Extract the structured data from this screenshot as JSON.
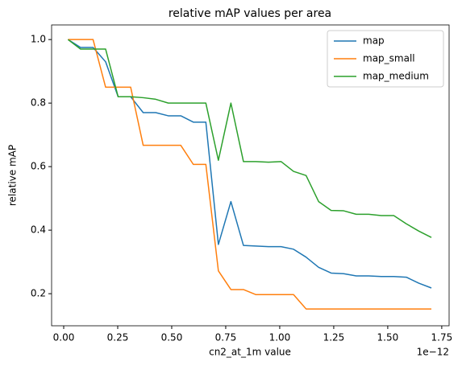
{
  "chart_data": {
    "type": "line",
    "title": "relative mAP values per area",
    "x_label": "cn2_at_1m value",
    "x_offset_label": "1e−12",
    "y_label": "relative mAP",
    "x": [
      0.02,
      0.078,
      0.136,
      0.194,
      0.252,
      0.31,
      0.368,
      0.426,
      0.484,
      0.542,
      0.6,
      0.658,
      0.716,
      0.774,
      0.832,
      0.89,
      0.948,
      1.006,
      1.064,
      1.122,
      1.18,
      1.238,
      1.296,
      1.354,
      1.412,
      1.47,
      1.528,
      1.586,
      1.644,
      1.702
    ],
    "series": [
      {
        "name": "map",
        "color": "#1f77b4",
        "values": [
          1.0,
          0.975,
          0.975,
          0.93,
          0.82,
          0.82,
          0.77,
          0.77,
          0.76,
          0.76,
          0.74,
          0.74,
          0.355,
          0.49,
          0.352,
          0.35,
          0.348,
          0.348,
          0.34,
          0.315,
          0.283,
          0.265,
          0.263,
          0.256,
          0.256,
          0.254,
          0.254,
          0.252,
          0.233,
          0.218
        ]
      },
      {
        "name": "map_small",
        "color": "#ff7f0e",
        "values": [
          1.0,
          1.0,
          1.0,
          0.85,
          0.85,
          0.85,
          0.667,
          0.667,
          0.667,
          0.667,
          0.607,
          0.607,
          0.272,
          0.213,
          0.213,
          0.197,
          0.197,
          0.197,
          0.197,
          0.152,
          0.152,
          0.152,
          0.152,
          0.152,
          0.152,
          0.152,
          0.152,
          0.152,
          0.152,
          0.152
        ]
      },
      {
        "name": "map_medium",
        "color": "#2ca02c",
        "values": [
          1.0,
          0.97,
          0.97,
          0.97,
          0.82,
          0.82,
          0.817,
          0.812,
          0.8,
          0.8,
          0.8,
          0.8,
          0.62,
          0.8,
          0.616,
          0.616,
          0.614,
          0.616,
          0.585,
          0.572,
          0.49,
          0.462,
          0.461,
          0.45,
          0.45,
          0.446,
          0.446,
          0.42,
          0.397,
          0.377
        ]
      }
    ],
    "xlim": [
      -0.056,
      1.784
    ],
    "ylim": [
      0.099,
      1.046
    ],
    "xticks": [
      {
        "value": 0,
        "label": "0.00"
      },
      0.25,
      {
        "value": 0.5,
        "label": "0.50"
      },
      0.75,
      {
        "value": 1,
        "label": "1.00"
      },
      1.25,
      {
        "value": 1.5,
        "label": "1.50"
      },
      1.75
    ],
    "yticks": [
      0.2,
      0.4,
      0.6,
      0.8,
      {
        "value": 1,
        "label": "1.0"
      }
    ],
    "legend": "upper right",
    "grid": false
  }
}
